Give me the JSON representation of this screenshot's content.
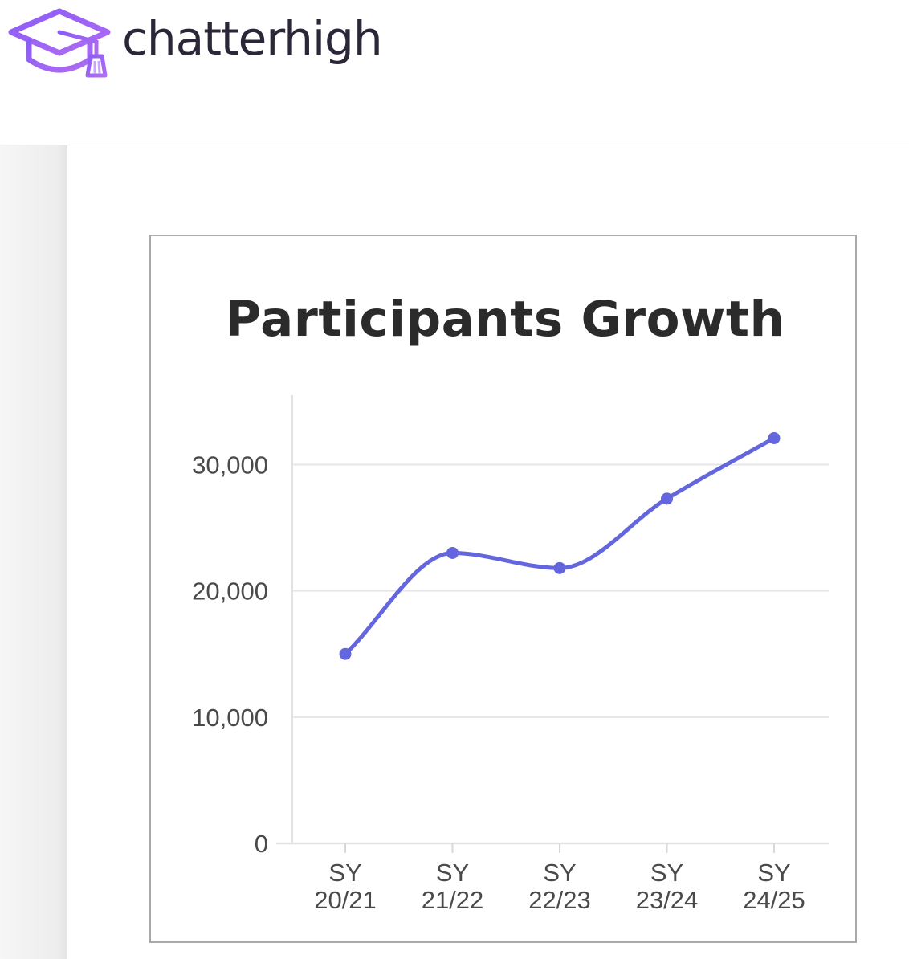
{
  "brand": {
    "name": "chatterhigh",
    "logo_icon": "graduation-cap-icon",
    "logo_color": "#9b5cf0",
    "text_color": "#2c2738"
  },
  "chart_data": {
    "type": "line",
    "title": "Participants Growth",
    "categories": [
      [
        "SY",
        "20/21"
      ],
      [
        "SY",
        "21/22"
      ],
      [
        "SY",
        "22/23"
      ],
      [
        "SY",
        "23/24"
      ],
      [
        "SY",
        "24/25"
      ]
    ],
    "series": [
      {
        "values": [
          15000,
          23000,
          21800,
          27300,
          32100
        ],
        "color": "#6366dd"
      }
    ],
    "y_ticks": [
      0,
      10000,
      20000,
      30000
    ],
    "y_tick_labels": [
      "0",
      "10,000",
      "20,000",
      "30,000"
    ],
    "ylim": [
      0,
      35500
    ],
    "xlabel": "",
    "ylabel": "",
    "grid": true,
    "smooth": true,
    "markers": true,
    "legend": false
  }
}
